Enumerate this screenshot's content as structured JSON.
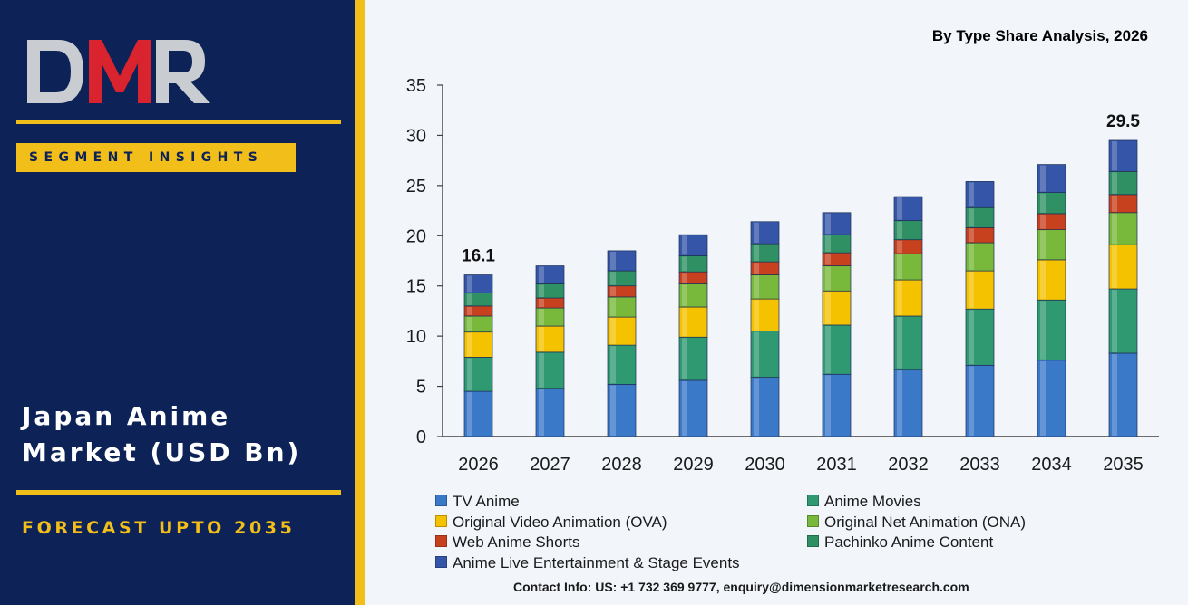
{
  "brand": {
    "logo_text": "DMR",
    "segment_label": "SEGMENT INSIGHTS",
    "market_title_line1": "Japan Anime",
    "market_title_line2": "Market (USD Bn)",
    "forecast_label": "FORECAST UPTO 2035"
  },
  "chart_subtitle": "By Type Share Analysis, 2026",
  "contact": "Contact Info: US: +1 732 369 9777, enquiry@dimensionmarketresearch.com",
  "colors": {
    "panel_navy": "#0d2357",
    "accent_gold": "#f2be1a",
    "logo_red": "#d9232e",
    "logo_grey": "#c9cdd2",
    "chart_bg": "#f2f6fb"
  },
  "chart_data": {
    "type": "bar",
    "stacked": true,
    "title": "",
    "xlabel": "",
    "ylabel": "",
    "ylim": [
      0,
      35
    ],
    "yticks": [
      0,
      5,
      10,
      15,
      20,
      25,
      30,
      35
    ],
    "grid": false,
    "legend_position": "bottom",
    "categories": [
      "2026",
      "2027",
      "2028",
      "2029",
      "2030",
      "2031",
      "2032",
      "2033",
      "2034",
      "2035"
    ],
    "totals_labels": [
      {
        "category": "2026",
        "label": "16.1",
        "value": 16.1
      },
      {
        "category": "2035",
        "label": "29.5",
        "value": 29.5
      }
    ],
    "series": [
      {
        "name": "TV Anime",
        "color": "#3a78c8",
        "values": [
          4.5,
          4.8,
          5.2,
          5.6,
          5.9,
          6.2,
          6.7,
          7.1,
          7.6,
          8.3
        ]
      },
      {
        "name": "Anime Movies",
        "color": "#2f9a72",
        "values": [
          3.4,
          3.6,
          3.9,
          4.3,
          4.6,
          4.9,
          5.3,
          5.6,
          6.0,
          6.4
        ]
      },
      {
        "name": "Original Video Animation (OVA)",
        "color": "#f5c200",
        "values": [
          2.5,
          2.6,
          2.8,
          3.0,
          3.2,
          3.4,
          3.6,
          3.8,
          4.0,
          4.4
        ]
      },
      {
        "name": "Original Net Animation (ONA)",
        "color": "#78b83a",
        "values": [
          1.6,
          1.8,
          2.0,
          2.3,
          2.4,
          2.5,
          2.6,
          2.8,
          3.0,
          3.2
        ]
      },
      {
        "name": "Web Anime Shorts",
        "color": "#c8411e",
        "values": [
          1.0,
          1.0,
          1.1,
          1.2,
          1.3,
          1.3,
          1.4,
          1.5,
          1.6,
          1.8
        ]
      },
      {
        "name": "Pachinko Anime Content",
        "color": "#2e9063",
        "values": [
          1.3,
          1.4,
          1.5,
          1.6,
          1.8,
          1.8,
          1.9,
          2.0,
          2.1,
          2.3
        ]
      },
      {
        "name": "Anime Live Entertainment & Stage Events",
        "color": "#3556a8",
        "values": [
          1.8,
          1.8,
          2.0,
          2.1,
          2.2,
          2.2,
          2.4,
          2.6,
          2.8,
          3.1
        ]
      }
    ]
  }
}
